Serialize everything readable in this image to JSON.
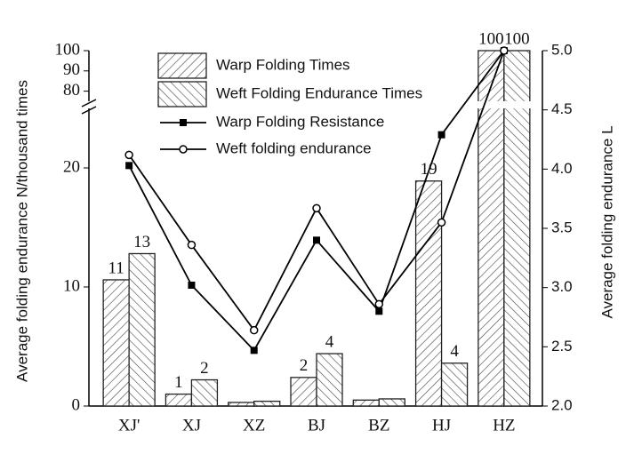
{
  "chart_data": {
    "type": "bar-line",
    "categories": [
      "XJ'",
      "XJ",
      "XZ",
      "BJ",
      "BZ",
      "HJ",
      "HZ"
    ],
    "series": [
      {
        "name": "Warp Folding Times",
        "type": "bar",
        "color": "#222",
        "hatch": "forward",
        "values": [
          10.6,
          1.0,
          0.3,
          2.4,
          0.5,
          18.9,
          100
        ],
        "value_labels": [
          "11",
          "1",
          null,
          "2",
          null,
          "19",
          "100"
        ]
      },
      {
        "name": "Weft Folding Endurance Times",
        "type": "bar",
        "color": "#222",
        "hatch": "backward",
        "values": [
          12.8,
          2.2,
          0.4,
          4.4,
          0.6,
          3.6,
          100
        ],
        "value_labels": [
          "13",
          "2",
          null,
          "4",
          null,
          "4",
          "100"
        ]
      },
      {
        "name": "Warp Folding Resistance",
        "type": "line",
        "axis": "y2",
        "color": "#000",
        "marker": "square",
        "values": [
          4.03,
          3.02,
          2.47,
          3.4,
          2.8,
          4.29,
          5.0
        ]
      },
      {
        "name": "Weft folding endurance",
        "type": "line",
        "axis": "y2",
        "color": "#000",
        "marker": "open-circle",
        "values": [
          4.12,
          3.36,
          2.64,
          3.67,
          2.86,
          3.55,
          5.0
        ]
      }
    ],
    "y_label": "Average folding endurance N/thousand times",
    "y2_label": "Average folding endurance L",
    "ylim_segments": [
      [
        0,
        25
      ],
      [
        75,
        100
      ]
    ],
    "yticks": [
      0,
      10,
      20,
      80,
      90,
      100
    ],
    "y2lim": [
      2,
      5
    ],
    "y2ticks": [
      {
        "value": 2,
        "label": "2.0"
      },
      2.5,
      {
        "value": 3,
        "label": "3.0"
      },
      3.5,
      {
        "value": 4,
        "label": "4.0"
      },
      4.5,
      {
        "value": 5,
        "label": "5.0"
      }
    ],
    "legend": "top-left"
  }
}
